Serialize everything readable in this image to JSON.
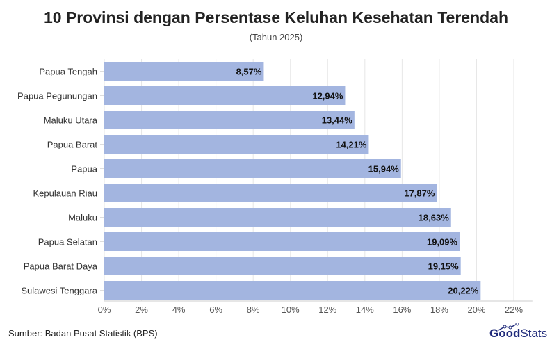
{
  "chart_data": {
    "type": "bar",
    "orientation": "horizontal",
    "title": "10 Provinsi dengan Persentase Keluhan Kesehatan Terendah",
    "subtitle": "(Tahun 2025)",
    "categories": [
      "Papua Tengah",
      "Papua Pegunungan",
      "Maluku Utara",
      "Papua Barat",
      "Papua",
      "Kepulauan Riau",
      "Maluku",
      "Papua Selatan",
      "Papua Barat Daya",
      "Sulawesi Tenggara"
    ],
    "values": [
      8.57,
      12.94,
      13.44,
      14.21,
      15.94,
      17.87,
      18.63,
      19.09,
      19.15,
      20.22
    ],
    "labels": [
      "8,57%",
      "12,94%",
      "13,44%",
      "14,21%",
      "15,94%",
      "17,87%",
      "18,63%",
      "19,09%",
      "19,15%",
      "20,22%"
    ],
    "xticks": [
      "0%",
      "2%",
      "4%",
      "6%",
      "8%",
      "10%",
      "12%",
      "14%",
      "16%",
      "18%",
      "20%",
      "22%"
    ],
    "xlim": [
      0,
      23
    ],
    "grid": true,
    "bar_color": "#a3b5e0"
  },
  "footer": {
    "source": "Sumber: Badan Pusat Statistik (BPS)",
    "logo_bold": "Good",
    "logo_light": "Stats"
  }
}
